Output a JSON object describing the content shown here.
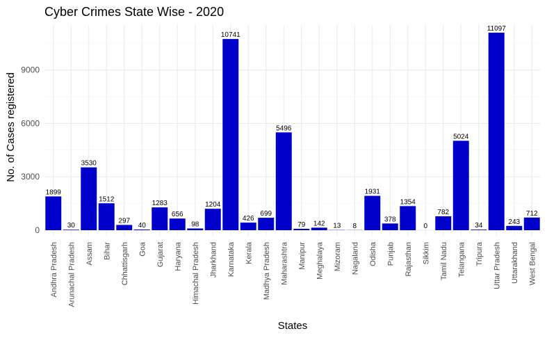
{
  "chart_data": {
    "type": "bar",
    "title": "Cyber Crimes State Wise - 2020",
    "xlabel": "States",
    "ylabel": "No. of Cases registered",
    "categories": [
      "Andhra Pradesh",
      "Arunachal Pradesh",
      "Assam",
      "Bihar",
      "Chhattisgarh",
      "Goa",
      "Gujarat",
      "Haryana",
      "Himachal Pradesh",
      "Jharkhand",
      "Karnataka",
      "Kerala",
      "Madhya Pradesh",
      "Maharashtra",
      "Manipur",
      "Meghalaya",
      "Mizoram",
      "Nagaland",
      "Odisha",
      "Punjab",
      "Rajasthan",
      "Sikkim",
      "Tamil Nadu",
      "Telangana",
      "Tripura",
      "Uttar Pradesh",
      "Uttarakhand",
      "West Bengal"
    ],
    "values": [
      1899,
      30,
      3530,
      1512,
      297,
      40,
      1283,
      656,
      98,
      1204,
      10741,
      426,
      699,
      5496,
      79,
      142,
      13,
      8,
      1931,
      378,
      1354,
      0,
      782,
      5024,
      34,
      11097,
      243,
      712
    ],
    "y_ticks": [
      0,
      3000,
      6000,
      9000
    ],
    "y_tick_labels": [
      "0",
      "3000",
      "6000",
      "9000"
    ],
    "ylim": [
      0,
      11650
    ],
    "bar_color": "#0000CD",
    "grid": true,
    "legend": "none"
  }
}
